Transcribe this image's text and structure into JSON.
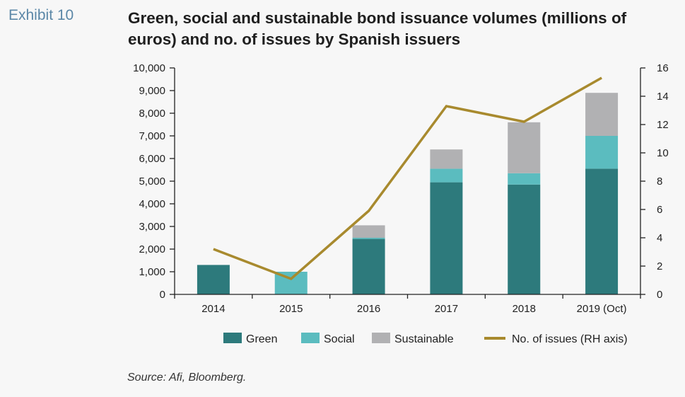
{
  "exhibit": {
    "label": "Exhibit 10"
  },
  "title": "Green, social and sustainable bond issuance volumes (millions of euros) and no. of issues by Spanish issuers",
  "source": "Source: Afi, Bloomberg.",
  "colors": {
    "green": "#2d7a7c",
    "social": "#5bbcbf",
    "sustainable": "#b1b1b3",
    "issues_line": "#a88a2e"
  },
  "chart_data": {
    "type": "bar",
    "stacked": true,
    "categories": [
      "2014",
      "2015",
      "2016",
      "2017",
      "2018",
      "2019 (Oct)"
    ],
    "series": [
      {
        "name": "Green",
        "values": [
          1300,
          0,
          2450,
          4950,
          4850,
          5550
        ]
      },
      {
        "name": "Social",
        "values": [
          0,
          1000,
          50,
          600,
          500,
          1450
        ]
      },
      {
        "name": "Sustainable",
        "values": [
          0,
          0,
          550,
          850,
          2250,
          1900
        ]
      }
    ],
    "line_series": {
      "name": "No. of issues (RH axis)",
      "axis": "right",
      "values": [
        3.2,
        1.1,
        5.9,
        13.3,
        12.2,
        15.3
      ]
    },
    "y_left": {
      "lim": [
        0,
        10000
      ],
      "ticks": [
        0,
        1000,
        2000,
        3000,
        4000,
        5000,
        6000,
        7000,
        8000,
        9000,
        10000
      ],
      "tick_labels": [
        "0",
        "1,000",
        "2,000",
        "3,000",
        "4,000",
        "5,000",
        "6,000",
        "7,000",
        "8,000",
        "9,000",
        "10,000"
      ]
    },
    "y_right": {
      "lim": [
        0,
        16
      ],
      "ticks": [
        0,
        2,
        4,
        6,
        8,
        10,
        12,
        14,
        16
      ],
      "tick_labels": [
        "0",
        "2",
        "4",
        "6",
        "8",
        "10",
        "12",
        "14",
        "16"
      ]
    },
    "legend": {
      "position": "bottom",
      "items": [
        "Green",
        "Social",
        "Sustainable",
        "No. of issues (RH axis)"
      ]
    },
    "grid": false
  }
}
